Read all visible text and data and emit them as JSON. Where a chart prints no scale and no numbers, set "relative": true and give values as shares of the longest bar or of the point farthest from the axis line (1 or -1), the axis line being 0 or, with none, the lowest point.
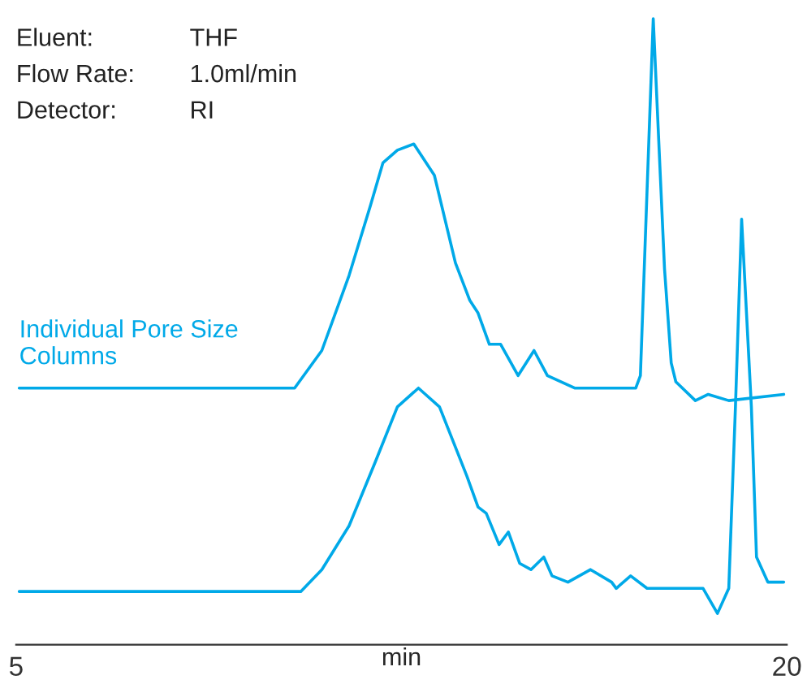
{
  "chart_data": {
    "type": "line",
    "relative": true,
    "xlabel": "min",
    "xlim": [
      5,
      20
    ],
    "xticks": [
      5,
      20
    ],
    "annotations": [
      "Eluent:",
      "THF",
      "Flow Rate:",
      "1.0ml/min",
      "Detector:",
      "RI"
    ],
    "series": [
      {
        "name": "Individual Pore Size\nColumns",
        "color": "#00a9e8",
        "x": [
          5.06,
          10.42,
          10.95,
          11.48,
          11.89,
          12.14,
          12.42,
          12.74,
          13.14,
          13.55,
          13.83,
          13.99,
          14.21,
          14.43,
          14.77,
          15.08,
          15.34,
          15.87,
          16.59,
          17.06,
          17.15,
          17.4,
          17.62,
          17.75,
          17.84,
          18.22,
          18.47,
          18.87,
          19.94
        ],
        "values": [
          0.41,
          0.41,
          0.47,
          0.59,
          0.7,
          0.77,
          0.79,
          0.8,
          0.75,
          0.61,
          0.55,
          0.53,
          0.48,
          0.48,
          0.43,
          0.47,
          0.43,
          0.41,
          0.41,
          0.41,
          0.43,
          1.0,
          0.6,
          0.45,
          0.42,
          0.39,
          0.4,
          0.39,
          0.4
        ]
      },
      {
        "color": "#00a9e8",
        "x": [
          5.06,
          10.54,
          10.95,
          11.48,
          11.98,
          12.42,
          12.83,
          13.24,
          13.77,
          13.99,
          14.15,
          14.4,
          14.58,
          14.8,
          15.02,
          15.27,
          15.43,
          15.74,
          16.18,
          16.59,
          16.68,
          16.96,
          17.28,
          18.37,
          18.65,
          18.87,
          19.0,
          19.12,
          19.31,
          19.41,
          19.63,
          19.94
        ],
        "values": [
          0.085,
          0.085,
          0.12,
          0.19,
          0.29,
          0.38,
          0.41,
          0.38,
          0.27,
          0.22,
          0.21,
          0.16,
          0.18,
          0.13,
          0.12,
          0.14,
          0.11,
          0.1,
          0.12,
          0.1,
          0.09,
          0.11,
          0.09,
          0.09,
          0.05,
          0.09,
          0.38,
          0.68,
          0.38,
          0.14,
          0.1,
          0.1
        ]
      }
    ]
  }
}
